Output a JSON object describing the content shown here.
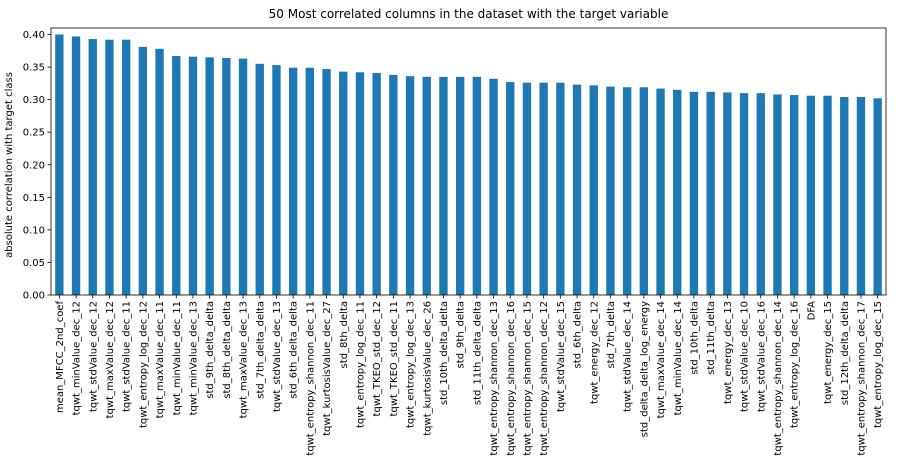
{
  "chart_data": {
    "type": "bar",
    "title": "50 Most correlated columns in the dataset with the target variable",
    "xlabel": "",
    "ylabel": "absolute correlation with target class",
    "ylim": [
      0,
      0.41
    ],
    "yticks": [
      "0.00",
      "0.05",
      "0.10",
      "0.15",
      "0.20",
      "0.25",
      "0.30",
      "0.35",
      "0.40"
    ],
    "grid": false,
    "bar_color": "#1f77b4",
    "categories": [
      "mean_MFCC_2nd_coef",
      "tqwt_minValue_dec_12",
      "tqwt_stdValue_dec_12",
      "tqwt_maxValue_dec_12",
      "tqwt_stdValue_dec_11",
      "tqwt_entropy_log_dec_12",
      "tqwt_maxValue_dec_11",
      "tqwt_minValue_dec_11",
      "tqwt_minValue_dec_13",
      "std_9th_delta_delta",
      "std_8th_delta_delta",
      "tqwt_maxValue_dec_13",
      "std_7th_delta_delta",
      "tqwt_stdValue_dec_13",
      "std_6th_delta_delta",
      "tqwt_entropy_shannon_dec_11",
      "tqwt_kurtosisValue_dec_27",
      "std_8th_delta",
      "tqwt_entropy_log_dec_11",
      "tqwt_TKEO_std_dec_12",
      "tqwt_TKEO_std_dec_11",
      "tqwt_entropy_log_dec_13",
      "tqwt_kurtosisValue_dec_26",
      "std_10th_delta_delta",
      "std_9th_delta",
      "std_11th_delta_delta",
      "tqwt_entropy_shannon_dec_13",
      "tqwt_entropy_shannon_dec_16",
      "tqwt_entropy_shannon_dec_15",
      "tqwt_entropy_shannon_dec_12",
      "tqwt_stdValue_dec_15",
      "std_6th_delta",
      "tqwt_energy_dec_12",
      "std_7th_delta",
      "tqwt_stdValue_dec_14",
      "std_delta_delta_log_energy",
      "tqwt_maxValue_dec_14",
      "tqwt_minValue_dec_14",
      "std_10th_delta",
      "std_11th_delta",
      "tqwt_energy_dec_13",
      "tqwt_stdValue_dec_10",
      "tqwt_stdValue_dec_16",
      "tqwt_entropy_shannon_dec_14",
      "tqwt_entropy_log_dec_16",
      "DFA",
      "tqwt_energy_dec_15",
      "std_12th_delta_delta",
      "tqwt_entropy_shannon_dec_17",
      "tqwt_entropy_log_dec_15"
    ],
    "values": [
      0.4,
      0.397,
      0.393,
      0.392,
      0.392,
      0.381,
      0.378,
      0.367,
      0.366,
      0.365,
      0.364,
      0.363,
      0.355,
      0.353,
      0.349,
      0.349,
      0.347,
      0.343,
      0.342,
      0.341,
      0.338,
      0.336,
      0.335,
      0.335,
      0.335,
      0.335,
      0.332,
      0.327,
      0.326,
      0.326,
      0.326,
      0.323,
      0.322,
      0.32,
      0.319,
      0.319,
      0.317,
      0.315,
      0.312,
      0.312,
      0.311,
      0.31,
      0.31,
      0.308,
      0.307,
      0.306,
      0.306,
      0.304,
      0.304,
      0.302
    ]
  }
}
